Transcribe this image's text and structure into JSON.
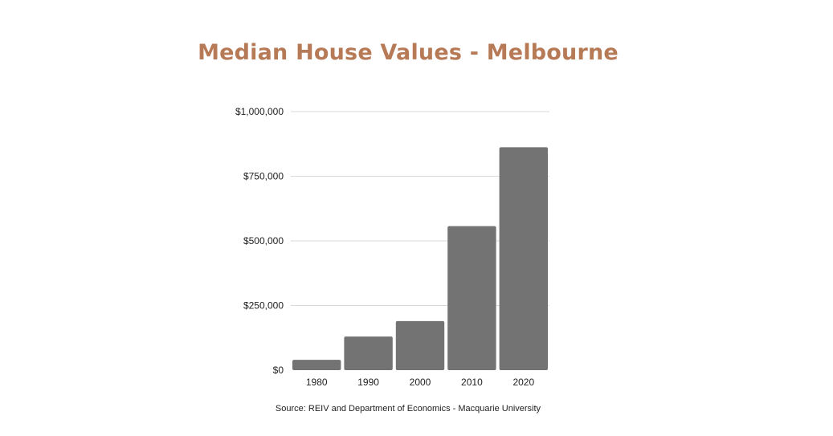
{
  "chart_data": {
    "type": "bar",
    "title": "Median House Values - Melbourne",
    "source": "Source: REIV and Department of Economics - Macquarie University",
    "categories": [
      "1980",
      "1990",
      "2000",
      "2010",
      "2020"
    ],
    "values": [
      40000,
      130000,
      190000,
      557000,
      862000
    ],
    "xlabel": "",
    "ylabel": "",
    "ylim": [
      0,
      1000000
    ],
    "yticks": [
      0,
      250000,
      500000,
      750000,
      1000000
    ],
    "ytick_labels": [
      "$0",
      "$250,000",
      "$500,000",
      "$750,000",
      "$1,000,000"
    ],
    "grid": true,
    "legend": "none"
  },
  "colors": {
    "title": "#b77a57",
    "bar": "#737373",
    "grid": "#d9d9d9",
    "tick_text": "#222222"
  }
}
